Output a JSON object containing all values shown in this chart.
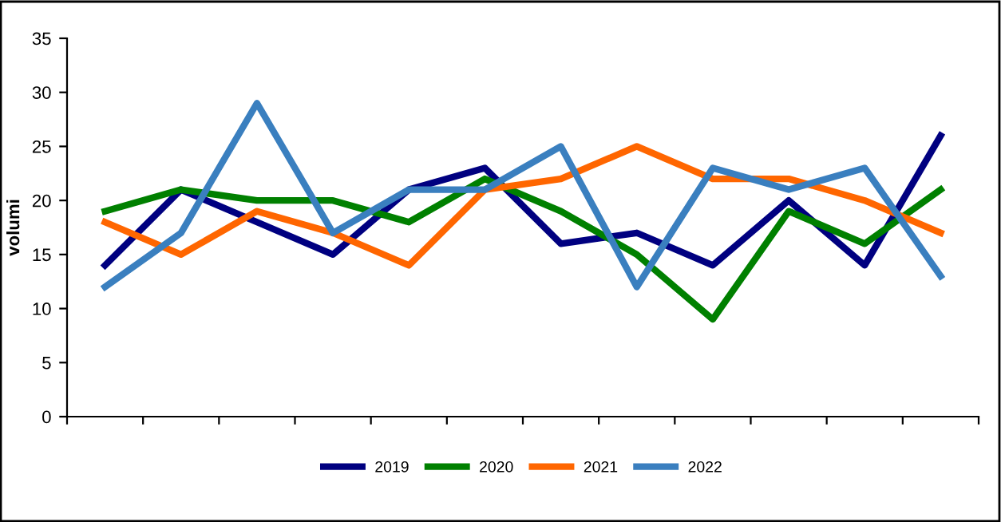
{
  "chart_data": {
    "type": "line",
    "ylabel": "volumi",
    "categories": [
      null,
      null,
      null,
      null,
      null,
      null,
      null,
      null,
      null,
      null,
      null,
      null
    ],
    "series": [
      {
        "name": "2019",
        "color": "#000080",
        "values": [
          14,
          21,
          18,
          15,
          21,
          23,
          16,
          17,
          14,
          20,
          14,
          26
        ]
      },
      {
        "name": "2020",
        "color": "#008000",
        "values": [
          19,
          21,
          20,
          20,
          18,
          22,
          19,
          15,
          9,
          19,
          16,
          21
        ]
      },
      {
        "name": "2021",
        "color": "#ff6600",
        "values": [
          18,
          15,
          19,
          17,
          14,
          21,
          22,
          25,
          22,
          22,
          20,
          17
        ]
      },
      {
        "name": "2022",
        "color": "#3a7fbf",
        "values": [
          12,
          17,
          29,
          17,
          21,
          21,
          25,
          12,
          23,
          21,
          23,
          13
        ]
      }
    ],
    "ylim": [
      0,
      35
    ],
    "yticks": [
      0,
      5,
      10,
      15,
      20,
      25,
      30,
      35
    ],
    "grid": false,
    "legend": "bottom",
    "marker": "none",
    "line_style": "solid"
  }
}
